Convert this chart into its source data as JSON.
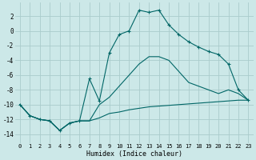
{
  "xlabel": "Humidex (Indice chaleur)",
  "background_color": "#cce8e8",
  "grid_color": "#aacccc",
  "line_color": "#006666",
  "xlim": [
    -0.5,
    23.5
  ],
  "ylim": [
    -15.2,
    3.8
  ],
  "xticks": [
    0,
    1,
    2,
    3,
    4,
    5,
    6,
    7,
    8,
    9,
    10,
    11,
    12,
    13,
    14,
    15,
    16,
    17,
    18,
    19,
    20,
    21,
    22,
    23
  ],
  "yticks": [
    2,
    0,
    -2,
    -4,
    -6,
    -8,
    -10,
    -12,
    -14
  ],
  "series": [
    {
      "x": [
        0,
        1,
        2,
        3,
        4,
        5,
        6,
        7,
        8,
        9,
        10,
        11,
        12,
        13,
        14,
        15,
        16,
        17,
        18,
        19,
        20,
        21,
        22,
        23
      ],
      "y": [
        -10,
        -11.5,
        -12,
        -12.2,
        -13.5,
        -12.5,
        -12.2,
        -12.2,
        -11.8,
        -11.2,
        -11,
        -10.7,
        -10.5,
        -10.3,
        -10.2,
        -10.1,
        -10,
        -9.9,
        -9.8,
        -9.7,
        -9.6,
        -9.5,
        -9.4,
        -9.4
      ],
      "marker": false
    },
    {
      "x": [
        0,
        1,
        2,
        3,
        4,
        5,
        6,
        7,
        8,
        9,
        10,
        11,
        12,
        13,
        14,
        15,
        16,
        17,
        18,
        19,
        20,
        21,
        22,
        23
      ],
      "y": [
        -10,
        -11.5,
        -12,
        -12.2,
        -13.5,
        -12.5,
        -12.2,
        -12.2,
        -10,
        -9,
        -7.5,
        -6,
        -4.5,
        -3.5,
        -3.5,
        -4,
        -5.5,
        -7,
        -7.5,
        -8,
        -8.5,
        -8,
        -8.5,
        -9.4
      ],
      "marker": false
    },
    {
      "x": [
        0,
        1,
        2,
        3,
        4,
        5,
        6,
        7,
        8,
        9,
        10,
        11,
        12,
        13,
        14,
        15,
        16,
        17,
        18,
        19,
        20,
        21,
        22,
        23
      ],
      "y": [
        -10,
        -11.5,
        -12,
        -12.2,
        -13.5,
        -12.5,
        -12.2,
        -6.5,
        -9.5,
        -3,
        -0.5,
        0,
        2.8,
        2.5,
        2.8,
        0.8,
        -0.5,
        -1.5,
        -2.2,
        -2.8,
        -3.2,
        -4.5,
        -8,
        -9.4
      ],
      "marker": true
    }
  ]
}
